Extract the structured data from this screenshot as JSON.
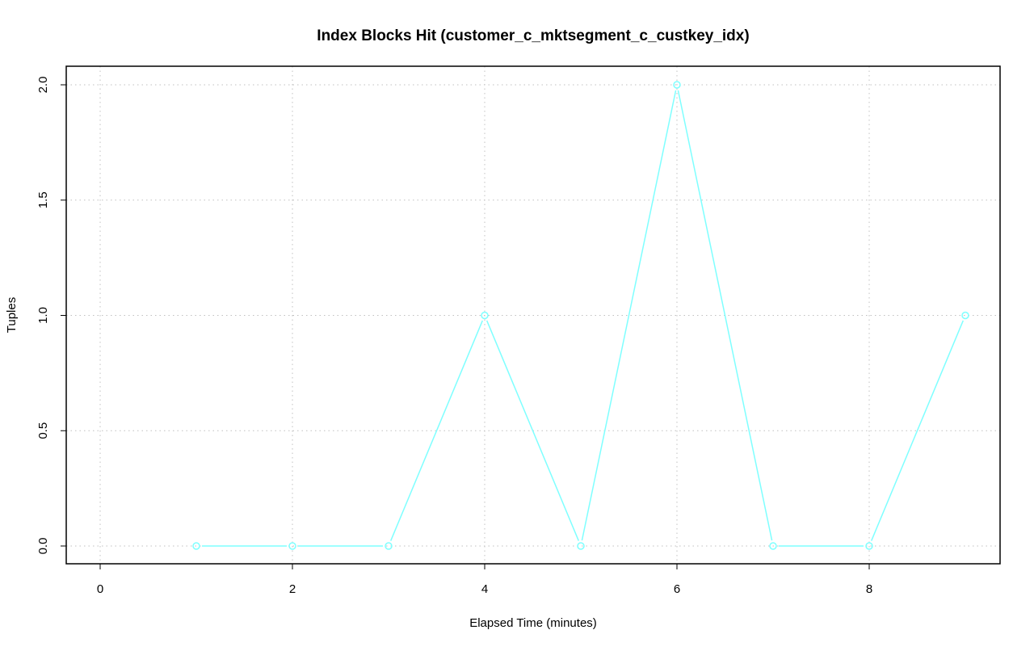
{
  "chart_data": {
    "type": "line",
    "title": "Index Blocks Hit (customer_c_mktsegment_c_custkey_idx)",
    "xlabel": "Elapsed Time (minutes)",
    "ylabel": "Tuples",
    "x": [
      1,
      2,
      3,
      4,
      5,
      6,
      7,
      8,
      9
    ],
    "series": [
      {
        "values": [
          0,
          0,
          0,
          1,
          0,
          2,
          0,
          0,
          1
        ],
        "color": "#7fffff",
        "marker": "open-circle"
      }
    ],
    "xlim": [
      -0.35,
      9.35
    ],
    "ylim": [
      -0.08,
      2.08
    ],
    "xticks": [
      "0",
      "2",
      "4",
      "6",
      "8"
    ],
    "yticks": [
      "0.0",
      "0.5",
      "1.0",
      "1.5",
      "2.0"
    ],
    "grid": true,
    "grid_style": "dotted",
    "grid_color": "#c0c0c0"
  }
}
